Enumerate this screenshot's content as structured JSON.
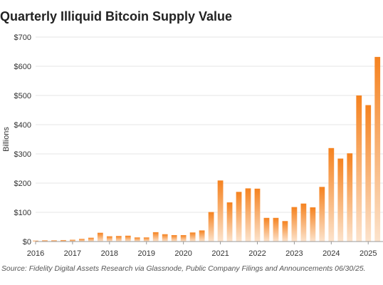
{
  "chart_data": {
    "type": "bar",
    "title": "Quarterly Illiquid Bitcoin Supply Value",
    "ylabel": "Billions",
    "xlabel": "",
    "ylim": [
      0,
      700
    ],
    "y_ticks": [
      0,
      100,
      200,
      300,
      400,
      500,
      600,
      700
    ],
    "y_tick_labels": [
      "$0",
      "$100",
      "$200",
      "$300",
      "$400",
      "$500",
      "$600",
      "$700"
    ],
    "x_tick_labels": [
      "2016",
      "2017",
      "2018",
      "2019",
      "2020",
      "2021",
      "2022",
      "2023",
      "2024",
      "2025"
    ],
    "x_tick_positions": [
      2016,
      2017,
      2018,
      2019,
      2020,
      2021,
      2022,
      2023,
      2024,
      2025
    ],
    "grid": true,
    "legend": "none",
    "colors": {
      "bar_top": "#F5821F",
      "bar_bottom": "#FCE3CC",
      "grid": "#E6E6E6",
      "axis": "#999999"
    },
    "categories": [
      "2016-Q1",
      "2016-Q2",
      "2016-Q3",
      "2016-Q4",
      "2017-Q1",
      "2017-Q2",
      "2017-Q3",
      "2017-Q4",
      "2018-Q1",
      "2018-Q2",
      "2018-Q3",
      "2018-Q4",
      "2019-Q1",
      "2019-Q2",
      "2019-Q3",
      "2019-Q4",
      "2020-Q1",
      "2020-Q2",
      "2020-Q3",
      "2020-Q4",
      "2021-Q1",
      "2021-Q2",
      "2021-Q3",
      "2021-Q4",
      "2022-Q1",
      "2022-Q2",
      "2022-Q3",
      "2022-Q4",
      "2023-Q1",
      "2023-Q2",
      "2023-Q3",
      "2023-Q4",
      "2024-Q1",
      "2024-Q2",
      "2024-Q3",
      "2024-Q4",
      "2025-Q1",
      "2025-Q2"
    ],
    "x": [
      2016.0,
      2016.25,
      2016.5,
      2016.75,
      2017.0,
      2017.25,
      2017.5,
      2017.75,
      2018.0,
      2018.25,
      2018.5,
      2018.75,
      2019.0,
      2019.25,
      2019.5,
      2019.75,
      2020.0,
      2020.25,
      2020.5,
      2020.75,
      2021.0,
      2021.25,
      2021.5,
      2021.75,
      2022.0,
      2022.25,
      2022.5,
      2022.75,
      2023.0,
      2023.25,
      2023.5,
      2023.75,
      2024.0,
      2024.25,
      2024.5,
      2024.75,
      2025.0,
      2025.25
    ],
    "values": [
      3,
      4,
      4,
      5,
      6,
      9,
      13,
      30,
      18,
      19,
      20,
      14,
      14,
      32,
      25,
      22,
      22,
      31,
      38,
      101,
      209,
      134,
      170,
      182,
      181,
      81,
      81,
      70,
      118,
      130,
      117,
      187,
      320,
      284,
      302,
      500,
      467,
      632
    ]
  },
  "source": "Source: Fidelity Digital Assets Research via Glassnode, Public Company Filings and Announcements 06/30/25."
}
